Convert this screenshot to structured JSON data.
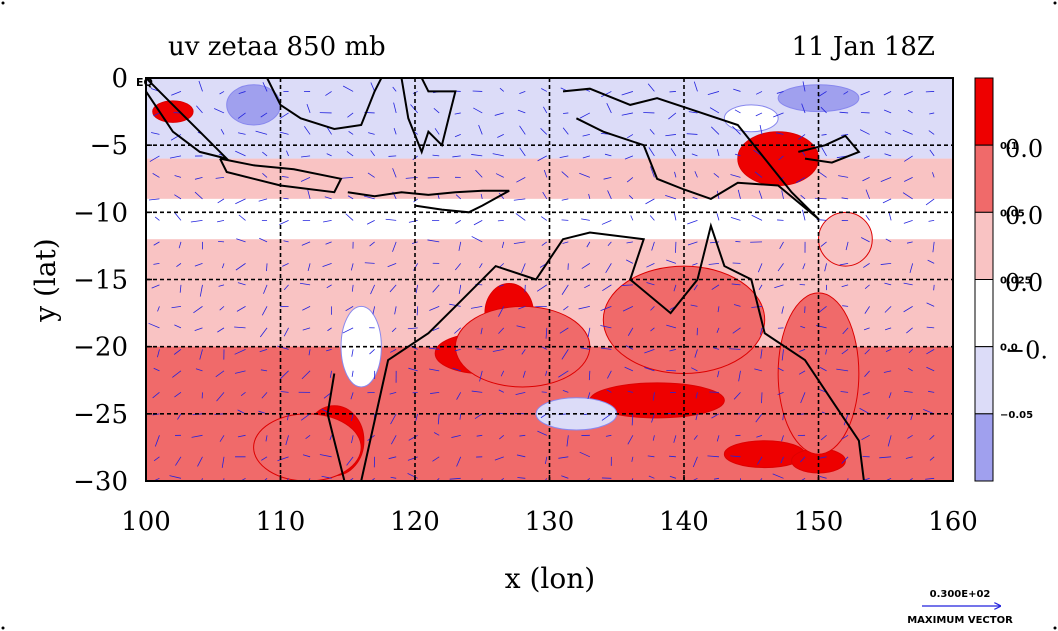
{
  "title_left": "uv zetaa 850 mb",
  "title_right": "11 Jan 18Z",
  "xlabel": "x (lon)",
  "ylabel": "y (lat)",
  "corner_label": "EQ",
  "x_ticks": [
    "100",
    "110",
    "120",
    "130",
    "140",
    "150",
    "160"
  ],
  "y_ticks": [
    "0",
    "−5",
    "−10",
    "−15",
    "−20",
    "−25",
    "−30"
  ],
  "colorbar": {
    "big_labels": [
      "0.0",
      "0.0",
      "0.0",
      "−0."
    ],
    "small_labels": [
      "0.1",
      "0.05",
      "0.025",
      "0.0",
      "−0.05"
    ],
    "colors": [
      "#ee0000",
      "#f06a6a",
      "#f9c3c3",
      "#ffffff",
      "#dcdcf8",
      "#a0a0ee"
    ]
  },
  "vector_legend": {
    "value": "0.300E+02",
    "label": "MAXIMUM VECTOR"
  },
  "chart_data": {
    "type": "heatmap",
    "title": "uv zetaa 850 mb",
    "subtitle": "11 Jan 18Z",
    "xlabel": "x (lon)",
    "ylabel": "y (lat)",
    "xlim": [
      100,
      160
    ],
    "ylim": [
      -30,
      0
    ],
    "x_ticks": [
      100,
      110,
      120,
      130,
      140,
      150,
      160
    ],
    "y_ticks": [
      0,
      -5,
      -10,
      -15,
      -20,
      -25,
      -30
    ],
    "grid": true,
    "contour_levels": [
      -0.05,
      0.0,
      0.025,
      0.05,
      0.1
    ],
    "colors": [
      "#a0a0ee",
      "#dcdcf8",
      "#ffffff",
      "#f9c3c3",
      "#f06a6a",
      "#ee0000"
    ],
    "lat_bands": [
      {
        "lat_from": 0,
        "lat_to": -6,
        "level_index": 1
      },
      {
        "lat_from": -6,
        "lat_to": -9,
        "level_index": 3
      },
      {
        "lat_from": -9,
        "lat_to": -12,
        "level_index": 2
      },
      {
        "lat_from": -12,
        "lat_to": -20,
        "level_index": 3
      },
      {
        "lat_from": -20,
        "lat_to": -30,
        "level_index": 4
      }
    ],
    "blobs": [
      {
        "lon": 114,
        "lat": -27,
        "rx": 2.2,
        "ry": 2.6,
        "level_index": 5
      },
      {
        "lon": 125,
        "lat": -20.5,
        "rx": 3.5,
        "ry": 1.5,
        "level_index": 5
      },
      {
        "lon": 127,
        "lat": -17.5,
        "rx": 1.8,
        "ry": 2.2,
        "level_index": 5
      },
      {
        "lon": 138,
        "lat": -24,
        "rx": 5,
        "ry": 1.3,
        "level_index": 5
      },
      {
        "lon": 146,
        "lat": -28,
        "rx": 3,
        "ry": 1,
        "level_index": 5
      },
      {
        "lon": 150,
        "lat": -28.5,
        "rx": 2,
        "ry": 0.9,
        "level_index": 5
      },
      {
        "lon": 102,
        "lat": -2.5,
        "rx": 1.5,
        "ry": 0.8,
        "level_index": 5
      },
      {
        "lon": 147,
        "lat": -6,
        "rx": 3,
        "ry": 2,
        "level_index": 5
      },
      {
        "lon": 112,
        "lat": -27.5,
        "rx": 4,
        "ry": 2.5,
        "level_index": 4
      },
      {
        "lon": 128,
        "lat": -20,
        "rx": 5,
        "ry": 3,
        "level_index": 4
      },
      {
        "lon": 140,
        "lat": -18,
        "rx": 6,
        "ry": 4,
        "level_index": 4
      },
      {
        "lon": 150,
        "lat": -22,
        "rx": 3,
        "ry": 6,
        "level_index": 4
      },
      {
        "lon": 132,
        "lat": -25,
        "rx": 3,
        "ry": 1.2,
        "level_index": 1
      },
      {
        "lon": 116,
        "lat": -20,
        "rx": 1.5,
        "ry": 3,
        "level_index": 2
      },
      {
        "lon": 108,
        "lat": -2,
        "rx": 2,
        "ry": 1.5,
        "level_index": 0
      },
      {
        "lon": 150,
        "lat": -1.5,
        "rx": 3,
        "ry": 1,
        "level_index": 0
      },
      {
        "lon": 145,
        "lat": -3,
        "rx": 2,
        "ry": 1,
        "level_index": 2
      },
      {
        "lon": 152,
        "lat": -12,
        "rx": 2,
        "ry": 2,
        "level_index": 3
      }
    ],
    "coastlines": [
      {
        "name": "australia",
        "points": [
          [
            114,
            -22
          ],
          [
            113.5,
            -25
          ],
          [
            114,
            -27
          ],
          [
            115,
            -31
          ],
          [
            116,
            -30
          ],
          [
            118,
            -21
          ],
          [
            121,
            -19
          ],
          [
            123,
            -17
          ],
          [
            126,
            -14
          ],
          [
            129,
            -15
          ],
          [
            131,
            -12
          ],
          [
            133,
            -11.5
          ],
          [
            137,
            -12
          ],
          [
            136,
            -15
          ],
          [
            139,
            -17.5
          ],
          [
            141,
            -15
          ],
          [
            142,
            -11
          ],
          [
            143,
            -14
          ],
          [
            145,
            -15
          ],
          [
            146,
            -19
          ],
          [
            149,
            -21
          ],
          [
            151,
            -24
          ],
          [
            153,
            -27
          ],
          [
            153.5,
            -31
          ]
        ]
      },
      {
        "name": "sumatra",
        "points": [
          [
            100,
            0
          ],
          [
            102,
            -2
          ],
          [
            104,
            -4
          ],
          [
            106,
            -6
          ],
          [
            104,
            -5.5
          ],
          [
            102,
            -4
          ],
          [
            100,
            -1
          ]
        ]
      },
      {
        "name": "java",
        "points": [
          [
            105.5,
            -6
          ],
          [
            108,
            -6.5
          ],
          [
            111,
            -6.8
          ],
          [
            114.5,
            -7.5
          ],
          [
            114,
            -8.5
          ],
          [
            110,
            -8
          ],
          [
            106,
            -7
          ],
          [
            105.5,
            -6
          ]
        ]
      },
      {
        "name": "borneo",
        "points": [
          [
            109,
            0
          ],
          [
            110,
            -2
          ],
          [
            111.5,
            -3
          ],
          [
            114,
            -3.8
          ],
          [
            116,
            -3.5
          ],
          [
            117,
            -1
          ],
          [
            117.5,
            0
          ]
        ]
      },
      {
        "name": "sulawesi",
        "points": [
          [
            119,
            0
          ],
          [
            119.5,
            -3
          ],
          [
            120.5,
            -5.5
          ],
          [
            121,
            -4
          ],
          [
            122,
            -5
          ],
          [
            122.5,
            -3
          ],
          [
            123,
            -1
          ],
          [
            121,
            -1
          ],
          [
            120.5,
            0
          ]
        ]
      },
      {
        "name": "lesser-sunda",
        "points": [
          [
            115,
            -8.5
          ],
          [
            117,
            -8.8
          ],
          [
            119,
            -8.5
          ],
          [
            121,
            -8.7
          ],
          [
            123,
            -8.5
          ],
          [
            125,
            -8.4
          ],
          [
            127,
            -8.4
          ],
          [
            125,
            -9.5
          ],
          [
            124,
            -10
          ],
          [
            122,
            -9.8
          ],
          [
            120,
            -9.5
          ]
        ]
      },
      {
        "name": "new-guinea",
        "points": [
          [
            131,
            -1
          ],
          [
            133,
            -0.8
          ],
          [
            136,
            -2
          ],
          [
            138,
            -1.5
          ],
          [
            141,
            -2.5
          ],
          [
            144,
            -3.5
          ],
          [
            146,
            -6
          ],
          [
            148,
            -8.5
          ],
          [
            150,
            -10.5
          ],
          [
            147,
            -8
          ],
          [
            144,
            -7.8
          ],
          [
            142,
            -9
          ],
          [
            140,
            -8.3
          ],
          [
            138,
            -7.5
          ],
          [
            137,
            -5
          ],
          [
            134,
            -4
          ],
          [
            132,
            -3
          ]
        ]
      },
      {
        "name": "new-britain",
        "points": [
          [
            148.5,
            -5.5
          ],
          [
            150.5,
            -5
          ],
          [
            152,
            -4.3
          ],
          [
            153,
            -5.5
          ],
          [
            151,
            -6.3
          ],
          [
            149,
            -6
          ]
        ]
      }
    ],
    "vector_max": 30
  }
}
